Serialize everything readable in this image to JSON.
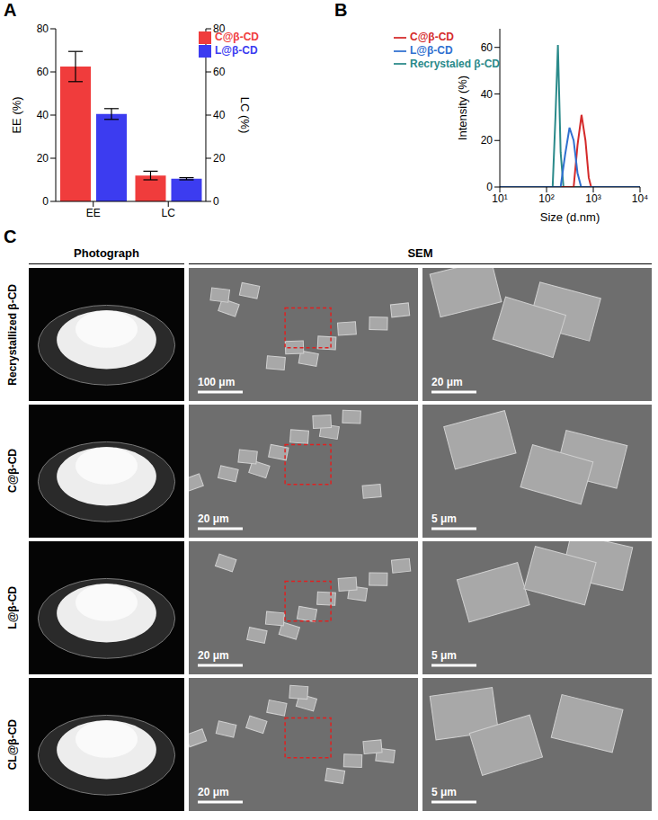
{
  "chart_data": [
    {
      "panel": "A",
      "type": "bar",
      "categories": [
        "EE",
        "LC"
      ],
      "series": [
        {
          "name": "C@β-CD",
          "color": "#f03c3c",
          "values": [
            62.5,
            12
          ],
          "errors": [
            7,
            2
          ]
        },
        {
          "name": "L@β-CD",
          "color": "#3c3cf0",
          "values": [
            40.5,
            10.5
          ],
          "errors": [
            2.5,
            0.5
          ]
        }
      ],
      "ylabel": "EE (%)",
      "y2label": "LC (%)",
      "ylim": [
        0,
        80
      ],
      "yticks": [
        0,
        20,
        40,
        60,
        80
      ],
      "y2lim": [
        0,
        80
      ],
      "y2ticks": [
        0,
        20,
        40,
        60,
        80
      ],
      "legend": "upper right"
    },
    {
      "panel": "B",
      "type": "line",
      "xlabel": "Size (d.nm)",
      "ylabel": "Intensity (%)",
      "log": "x",
      "xlim": [
        10,
        10000
      ],
      "xticks": [
        {
          "value": 10,
          "label": "10¹"
        },
        {
          "value": 100,
          "label": "10²"
        },
        {
          "value": 1000,
          "label": "10³"
        },
        {
          "value": 10000,
          "label": "10⁴"
        }
      ],
      "ylim": [
        0,
        68
      ],
      "yticks": [
        0,
        20,
        40,
        60
      ],
      "legend": "upper left",
      "series": [
        {
          "name": "Recrystaled β-CD",
          "color": "#2a8a8a",
          "x": [
            10,
            135,
            155,
            175,
            200,
            230,
            10000
          ],
          "values": [
            0,
            0,
            30,
            61,
            15,
            0,
            0
          ]
        },
        {
          "name": "C@β-CD",
          "color": "#d42a2a",
          "x": [
            10,
            380,
            460,
            560,
            680,
            800,
            900,
            10000
          ],
          "values": [
            0,
            0,
            18,
            31,
            20,
            4,
            0,
            0
          ]
        },
        {
          "name": "L@β-CD",
          "color": "#3070d0",
          "x": [
            10,
            200,
            250,
            310,
            380,
            460,
            550,
            10000
          ],
          "values": [
            0,
            0,
            14,
            25.5,
            20,
            6,
            0,
            0
          ]
        }
      ]
    }
  ],
  "panel_c": {
    "panel": "C",
    "columns": [
      "Photograph",
      "SEM"
    ],
    "rows": [
      {
        "label": "Recrystallized β-CD",
        "scale_bars": [
          "100 μm",
          "20 μm"
        ]
      },
      {
        "label": "C@β-CD",
        "scale_bars": [
          "20 μm",
          "5 μm"
        ]
      },
      {
        "label": "L@β-CD",
        "scale_bars": [
          "20 μm",
          "5 μm"
        ]
      },
      {
        "label": "CL@β-CD",
        "scale_bars": [
          "20 μm",
          "5 μm"
        ]
      }
    ]
  }
}
